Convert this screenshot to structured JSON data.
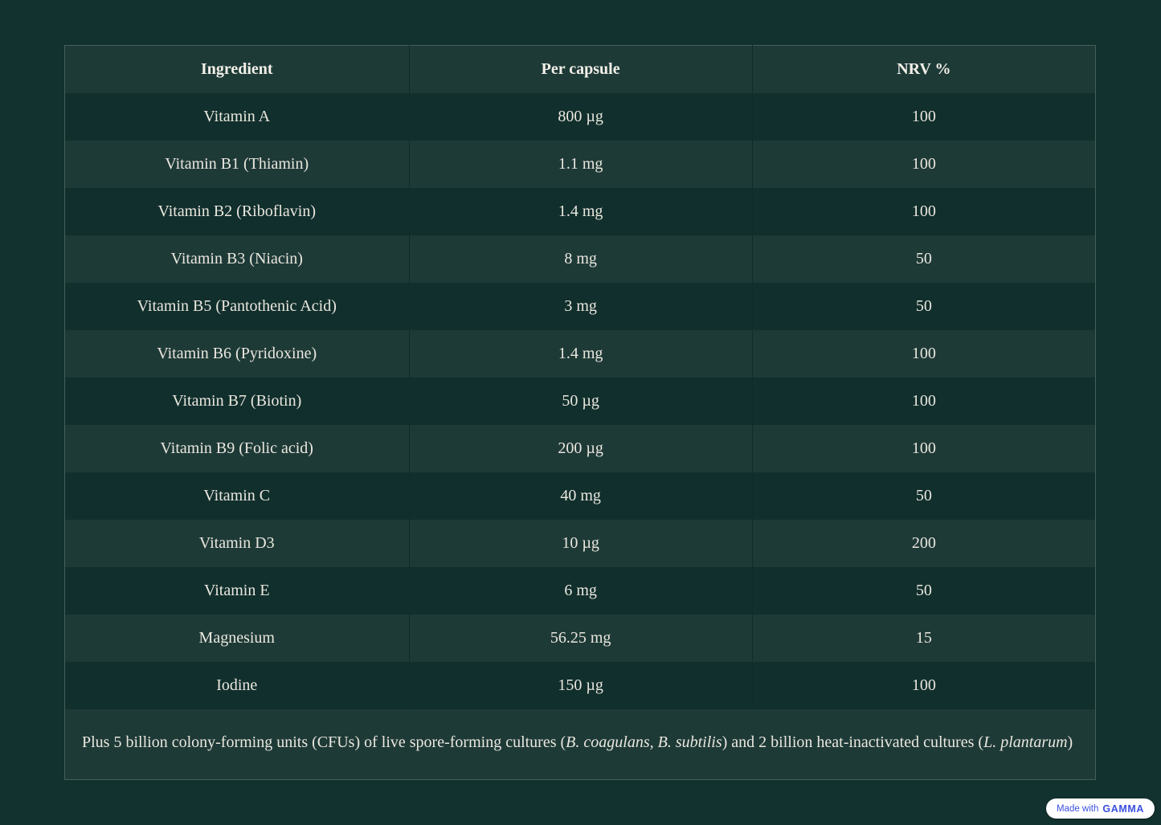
{
  "page": {
    "background": "#123230"
  },
  "colors": {
    "page_background": "#123230",
    "row_dark": "#112F2C",
    "row_light": "#1E3A37",
    "header_background": "#1E3A37",
    "outer_border": "#44605B",
    "column_divider": "#0F2C29",
    "text": "#EAE7DF",
    "badge_blue": "#3B4FE0",
    "badge_background": "#FFFFFF"
  },
  "table": {
    "headers": [
      "Ingredient",
      "Per capsule",
      "NRV %"
    ],
    "rows": [
      {
        "ingredient": "Vitamin A",
        "per_capsule": "800 µg",
        "nrv": "100"
      },
      {
        "ingredient": "Vitamin B1 (Thiamin)",
        "per_capsule": "1.1 mg",
        "nrv": "100"
      },
      {
        "ingredient": "Vitamin B2 (Riboflavin)",
        "per_capsule": "1.4 mg",
        "nrv": "100"
      },
      {
        "ingredient": "Vitamin B3 (Niacin)",
        "per_capsule": "8 mg",
        "nrv": "50"
      },
      {
        "ingredient": "Vitamin B5 (Pantothenic Acid)",
        "per_capsule": "3 mg",
        "nrv": "50"
      },
      {
        "ingredient": "Vitamin B6 (Pyridoxine)",
        "per_capsule": "1.4 mg",
        "nrv": "100"
      },
      {
        "ingredient": "Vitamin B7 (Biotin)",
        "per_capsule": "50 µg",
        "nrv": "100"
      },
      {
        "ingredient": "Vitamin B9 (Folic acid)",
        "per_capsule": "200 µg",
        "nrv": "100"
      },
      {
        "ingredient": "Vitamin C",
        "per_capsule": "40 mg",
        "nrv": "50"
      },
      {
        "ingredient": "Vitamin D3",
        "per_capsule": "10 µg",
        "nrv": "200"
      },
      {
        "ingredient": "Vitamin E",
        "per_capsule": "6 mg",
        "nrv": "50"
      },
      {
        "ingredient": "Magnesium",
        "per_capsule": "56.25 mg",
        "nrv": "15"
      },
      {
        "ingredient": "Iodine",
        "per_capsule": "150 µg",
        "nrv": "100"
      }
    ],
    "footnote_parts": [
      {
        "text": "Plus 5 billion colony-forming units (CFUs) of live spore-forming cultures (",
        "italic": false
      },
      {
        "text": "B. coagulans, B. subtilis",
        "italic": true
      },
      {
        "text": ") and 2 billion heat-inactivated cultures (",
        "italic": false
      },
      {
        "text": "L. plantarum",
        "italic": true
      },
      {
        "text": ")",
        "italic": false
      }
    ]
  },
  "badge": {
    "prefix": "Made with",
    "brand": "GAMMA"
  }
}
